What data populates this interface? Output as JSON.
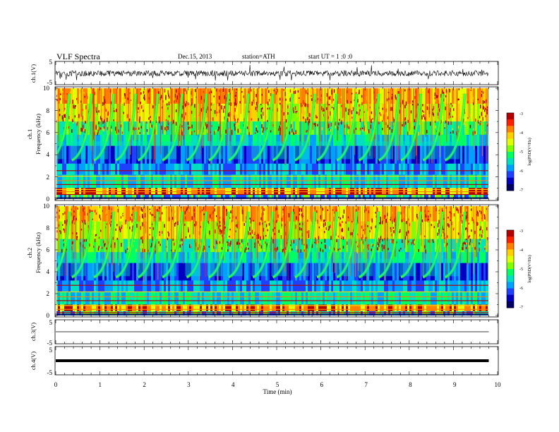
{
  "header": {
    "title": "VLF  Spectra",
    "date": "Dec.15, 2013",
    "station": "station=ATH",
    "start": "start  UT =  1 :0 :0"
  },
  "axes": {
    "xlabel": "Time  (min)",
    "xticks": [
      "0",
      "1",
      "2",
      "3",
      "4",
      "5",
      "6",
      "7",
      "8",
      "9",
      "10"
    ],
    "ch1_wave_label": "ch.1(V)",
    "ch1_wave_ticks": [
      "5",
      "-5"
    ],
    "ch1_spec_label1": "ch.1",
    "ch1_spec_label2": "Frequency  (kHz)",
    "ch2_spec_label1": "ch.2",
    "ch2_spec_label2": "Frequency  (kHz)",
    "spec_yticks": [
      "10",
      "8",
      "6",
      "4",
      "2",
      "0"
    ],
    "ch3_label": "ch.3(V)",
    "ch3_ticks": [
      "5",
      "-5"
    ],
    "ch4_label": "ch.4(V)",
    "ch4_ticks": [
      "5",
      "-5"
    ]
  },
  "colorbar": {
    "label": "log(PSD(V²/Hz)",
    "ticks": [
      "-3",
      "-4",
      "-5",
      "-6",
      "-7"
    ],
    "colors": [
      "#b40000",
      "#ff2000",
      "#ff8000",
      "#ffd000",
      "#e0ff00",
      "#80ff00",
      "#00ff60",
      "#00e0c0",
      "#00a0ff",
      "#2040ff",
      "#0000c0",
      "#000060"
    ]
  },
  "chart_data": {
    "type": "heatmap",
    "x_unit": "min",
    "xlim": [
      0,
      10
    ],
    "data_end_min": 9.8,
    "panels": [
      {
        "name": "ch.1(V)",
        "kind": "waveform",
        "ylim": [
          -5,
          5
        ]
      },
      {
        "name": "ch.1",
        "kind": "spectrogram",
        "ylim": [
          0,
          10
        ],
        "clim": [
          -7,
          -3
        ],
        "dispersive_onsets_min": [
          0.15,
          0.65,
          1.15,
          1.65,
          2.15,
          2.7,
          3.25,
          3.75,
          4.2,
          4.75,
          5.2,
          5.7,
          6.2,
          6.65,
          7.15,
          7.6,
          8.1,
          8.6,
          9.1
        ]
      },
      {
        "name": "ch.2",
        "kind": "spectrogram",
        "ylim": [
          0,
          10
        ],
        "clim": [
          -7,
          -3
        ],
        "dispersive_onsets_min": [
          0.15,
          0.65,
          1.15,
          1.65,
          2.15,
          2.7,
          3.25,
          3.75,
          4.2,
          4.75,
          5.2,
          5.7,
          6.2,
          6.65,
          7.15,
          7.6,
          8.1,
          8.6,
          9.1
        ]
      },
      {
        "name": "ch.3(V)",
        "kind": "waveform",
        "ylim": [
          -5,
          5
        ],
        "level": 0
      },
      {
        "name": "ch.4(V)",
        "kind": "waveform",
        "ylim": [
          -5,
          5
        ],
        "level": 0
      }
    ]
  }
}
